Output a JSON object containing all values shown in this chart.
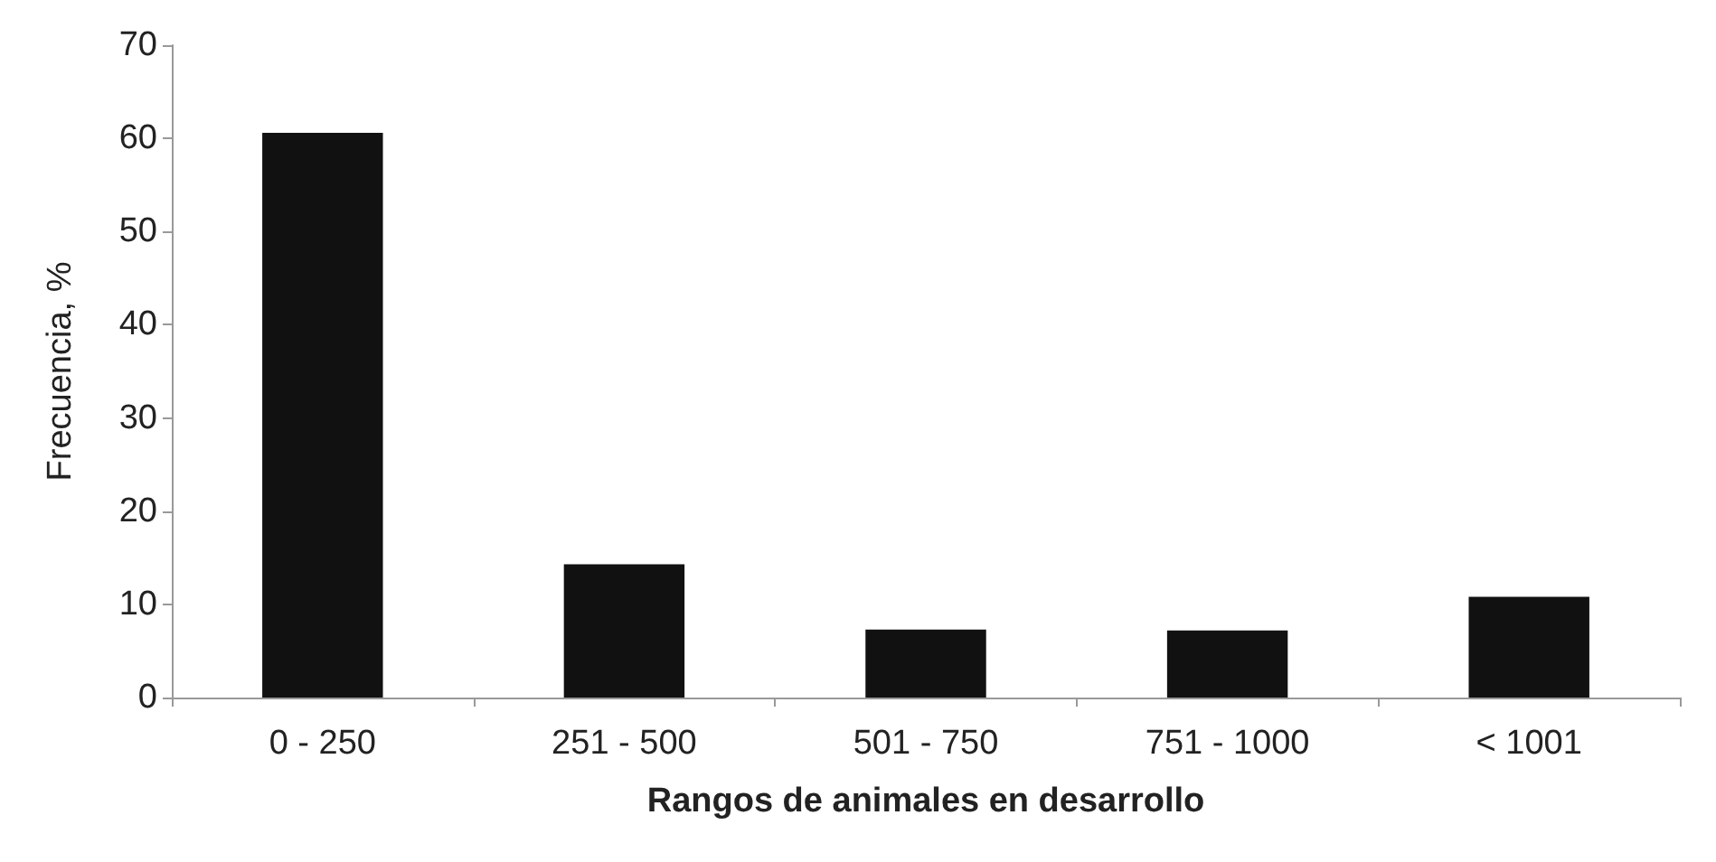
{
  "chart_data": {
    "type": "bar",
    "xlabel": "Rangos de animales en desarrollo",
    "ylabel": "Frecuencia, %",
    "categories": [
      "0 - 250",
      "251 - 500",
      "501 - 750",
      "751 - 1000",
      "< 1001"
    ],
    "values": [
      60.6,
      14.3,
      7.3,
      7.2,
      10.8
    ],
    "color": "#111111",
    "ylim": [
      0,
      70
    ],
    "yticks": [
      0,
      10,
      20,
      30,
      40,
      50,
      60,
      70
    ],
    "grid": false
  }
}
